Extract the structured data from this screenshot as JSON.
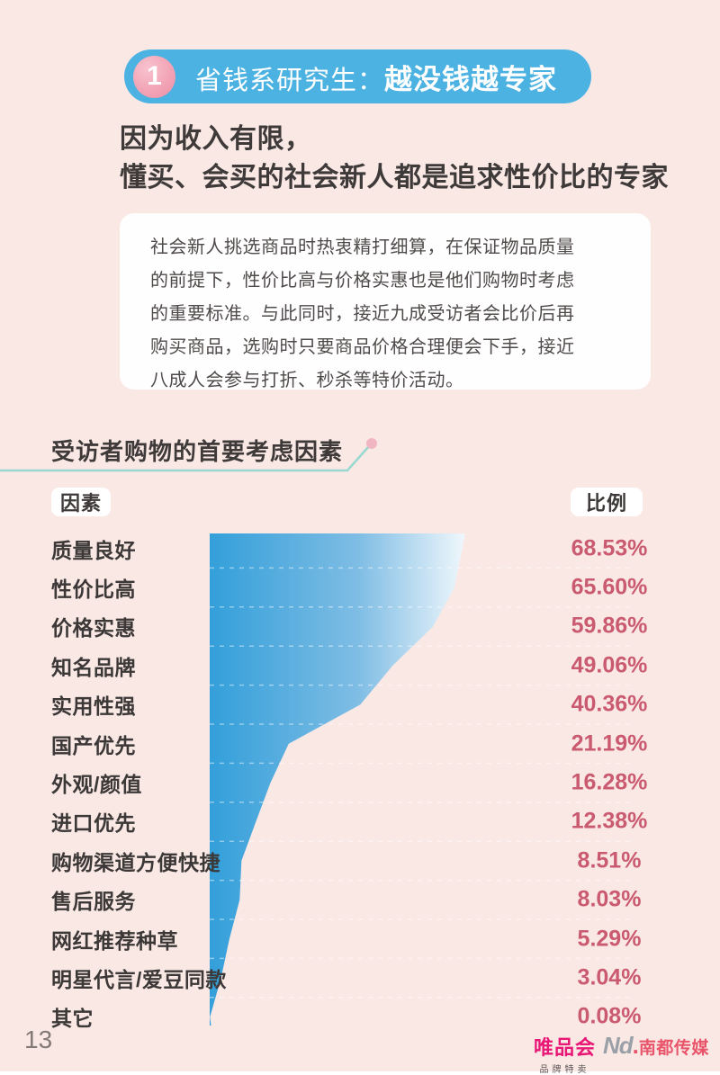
{
  "page": {
    "background": "#fae8e5",
    "page_number": "13"
  },
  "colors": {
    "header_pill_blue": "#4cb2e2",
    "badge_pink": "#f2a4b6",
    "funnel_blue": "#339fda",
    "value_pink": "#ca5a6f",
    "callout_teal": "#98d8d0",
    "callout_dot_pink": "#f0b6c1",
    "vip_magenta": "#e81776",
    "nd_red": "#e8556a"
  },
  "header": {
    "badge_number": "1",
    "title_prefix": "省钱系研究生：",
    "title_emphasis": "越没钱越专家"
  },
  "intro": {
    "line1": "因为收入有限，",
    "line2": "懂买、会买的社会新人都是追求性价比的专家"
  },
  "summary_box": {
    "text": "社会新人挑选商品时热衷精打细算，在保证物品质量\n的前提下，性价比高与价格实惠也是他们购物时考虑\n的重要标准。与此同时，接近九成受访者会比价后再\n购买商品，选购时只要商品价格合理便会下手，接近\n八成人会参与打折、秒杀等特价活动。"
  },
  "chart": {
    "title": "受访者购物的首要考虑因素",
    "factor_header": "因素",
    "ratio_header": "比例"
  },
  "chart_data": {
    "type": "bar",
    "subtype": "horizontal-funnel",
    "title": "受访者购物的首要考虑因素",
    "xlabel": "比例",
    "ylabel": "因素",
    "xlim": [
      0,
      68.53
    ],
    "grid": "dashed white row separators",
    "legend": "none",
    "categories": [
      "质量良好",
      "性价比高",
      "价格实惠",
      "知名品牌",
      "实用性强",
      "国产优先",
      "外观/颜值",
      "进口优先",
      "购物渠道方便快捷",
      "售后服务",
      "网红推荐种草",
      "明星代言/爱豆同款",
      "其它"
    ],
    "values": [
      68.53,
      65.6,
      59.86,
      49.06,
      40.36,
      21.19,
      16.28,
      12.38,
      8.51,
      8.03,
      5.29,
      3.04,
      0.08
    ],
    "value_labels": [
      "68.53%",
      "65.60%",
      "59.86%",
      "49.06%",
      "40.36%",
      "21.19%",
      "16.28%",
      "12.38%",
      "8.51%",
      "8.03%",
      "5.29%",
      "3.04%",
      "0.08%"
    ]
  },
  "footer": {
    "brand_vip": "唯品会",
    "brand_vip_sub": "品牌特卖",
    "brand_nd_mark": "Nd",
    "brand_nd_dot": ".",
    "brand_nd_name": "南都传媒"
  }
}
